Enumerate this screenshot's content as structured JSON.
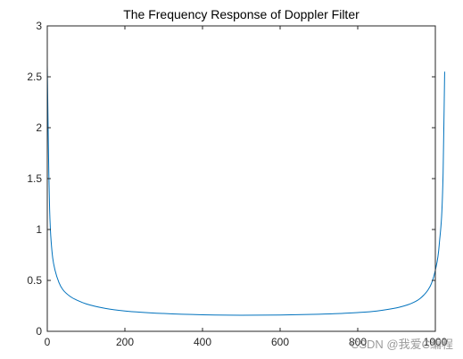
{
  "chart_data": {
    "type": "line",
    "title": "The Frequency Response of Doppler Filter",
    "xlabel": "",
    "ylabel": "",
    "xlim": [
      0,
      1000
    ],
    "ylim": [
      0,
      3
    ],
    "xticks": [
      0,
      200,
      400,
      600,
      800,
      1000
    ],
    "xtick_labels": [
      "0",
      "200",
      "400",
      "600",
      "800",
      "1000"
    ],
    "yticks": [
      0,
      0.5,
      1,
      1.5,
      2,
      2.5,
      3
    ],
    "ytick_labels": [
      "0",
      "0.5",
      "1",
      "1.5",
      "2",
      "2.5",
      "3"
    ],
    "grid": false,
    "series": [
      {
        "name": "",
        "color": "#0072BD",
        "x": [
          0,
          2,
          4,
          6,
          8,
          10,
          14,
          20,
          30,
          40,
          60,
          80,
          100,
          150,
          200,
          300,
          400,
          500,
          600,
          700,
          750,
          800,
          850,
          900,
          920,
          930,
          940,
          950,
          960,
          970,
          980,
          990,
          1000,
          1010,
          1020,
          1024
        ],
        "y": [
          2.62,
          2.05,
          1.55,
          1.2,
          1.0,
          0.88,
          0.72,
          0.6,
          0.48,
          0.41,
          0.34,
          0.3,
          0.27,
          0.225,
          0.2,
          0.175,
          0.162,
          0.158,
          0.16,
          0.168,
          0.174,
          0.184,
          0.2,
          0.23,
          0.25,
          0.262,
          0.277,
          0.295,
          0.32,
          0.355,
          0.4,
          0.47,
          0.6,
          0.85,
          1.55,
          2.55
        ]
      }
    ]
  },
  "watermark": {
    "text": "CSDN @我爱C编程"
  }
}
